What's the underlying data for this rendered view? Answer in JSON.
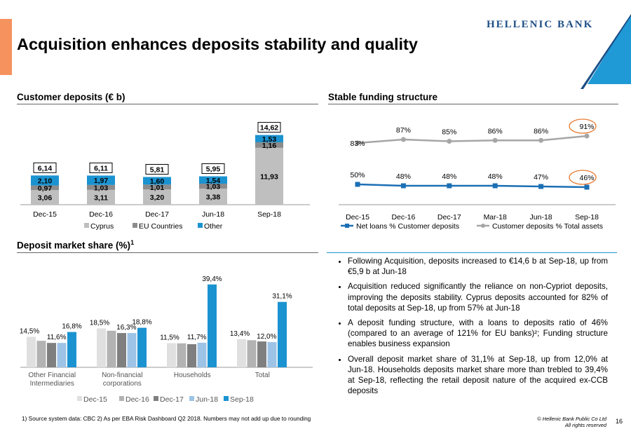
{
  "page": {
    "title": "Acquisition enhances deposits stability and quality",
    "logo": "HELLENIC BANK",
    "footnote": "1) Source system data: CBC 2) As per EBA Risk Dashboard Q2 2018. Numbers may not add up due to rounding",
    "copyright_line1": "© Hellenic Bank Public Co Ltd",
    "copyright_line2": "All rights reserved",
    "page_number": "16",
    "colors": {
      "accent": "#f5925e",
      "brand_blue": "#1c4e86",
      "triangle": "#1f9ad6"
    }
  },
  "sections": {
    "customer_deposits": "Customer deposits (€ b)",
    "stable_funding": "Stable funding structure",
    "market_share": "Deposit market share (%)",
    "market_share_sup": "1"
  },
  "bullets": [
    "Following Acquisition, deposits increased to €14,6 b at Sep-18, up from €5,9 b at Jun-18",
    "Acquisition reduced significantly the reliance on non-Cypriot deposits, improving the deposits stability. Cyprus deposits accounted for 82% of total deposits at Sep-18, up from 57% at Jun-18",
    "A deposit funding structure, with a loans to deposits ratio of 46% (compared to an average of 121% for EU banks)²; Funding structure enables business expansion",
    "Overall deposit market share of 31,1% at Sep-18, up from 12,0% at Jun-18. Households deposits market share more than trebled to 39,4% at Sep-18, reflecting the retail deposit nature of the acquired ex-CCB deposits"
  ],
  "chart_data": [
    {
      "type": "bar",
      "stacked": true,
      "categories": [
        "Dec-15",
        "Dec-16",
        "Dec-17",
        "Jun-18",
        "Sep-18"
      ],
      "series": [
        {
          "name": "Cyprus",
          "values": [
            3.06,
            3.11,
            3.2,
            3.38,
            11.93
          ],
          "labels": [
            "3,06",
            "3,11",
            "3,20",
            "3,38",
            "11,93"
          ],
          "color": "#bfbfbf"
        },
        {
          "name": "EU Countries",
          "values": [
            0.97,
            1.03,
            1.01,
            1.03,
            1.16
          ],
          "labels": [
            "0,97",
            "1,03",
            "1,01",
            "1,03",
            "1,16"
          ],
          "color": "#8c8c8c"
        },
        {
          "name": "Other",
          "values": [
            2.1,
            1.97,
            1.6,
            1.54,
            1.53
          ],
          "labels": [
            "2,10",
            "1,97",
            "1,60",
            "1,54",
            "1,53"
          ],
          "color": "#1b93d1"
        }
      ],
      "totals": [
        "6,14",
        "6,11",
        "5,81",
        "5,95",
        "14,62"
      ],
      "legend": "bottom"
    },
    {
      "type": "line",
      "categories": [
        "Dec-15",
        "Dec-16",
        "Dec-17",
        "Mar-18",
        "Jun-18",
        "Sep-18"
      ],
      "series": [
        {
          "name": "Net loans % Customer deposits",
          "values": [
            50,
            48,
            48,
            48,
            47,
            46
          ],
          "labels": [
            "50%",
            "48%",
            "48%",
            "48%",
            "47%",
            "46%"
          ],
          "color": "#1b6fb5"
        },
        {
          "name": "Customer deposits % Total assets",
          "values": [
            83,
            87,
            85,
            86,
            86,
            91
          ],
          "labels": [
            "83%",
            "87%",
            "85%",
            "86%",
            "86%",
            "91%"
          ],
          "color": "#a6a6a6"
        }
      ],
      "highlighted_labels": [
        "91%",
        "46%"
      ],
      "highlight_color": "#e8772e",
      "legend": "bottom"
    },
    {
      "type": "bar",
      "categories": [
        "Other Financial Intermediaries",
        "Non-financial corporations",
        "Households",
        "Total"
      ],
      "category_lines": [
        [
          "Other Financial",
          "Intermediaries"
        ],
        [
          "Non-financial",
          "corporations"
        ],
        [
          "Households"
        ],
        [
          "Total"
        ]
      ],
      "series": [
        {
          "name": "Dec-15",
          "values": [
            14.5,
            18.5,
            11.5,
            13.4
          ],
          "color": "#e0e0e0"
        },
        {
          "name": "Dec-16",
          "values": [
            12.6,
            17.4,
            11.4,
            12.9
          ],
          "color": "#b3b3b3"
        },
        {
          "name": "Dec-17",
          "values": [
            11.6,
            16.3,
            11.0,
            12.3
          ],
          "color": "#7f7f7f"
        },
        {
          "name": "Jun-18",
          "values": [
            11.6,
            16.3,
            11.7,
            12.0
          ],
          "color": "#9dc3e6"
        },
        {
          "name": "Sep-18",
          "values": [
            16.8,
            18.8,
            39.4,
            31.1
          ],
          "color": "#1b93d1"
        }
      ],
      "data_labels": [
        [
          "14,5%",
          null,
          null,
          "11,6%",
          "16,8%"
        ],
        [
          "18,5%",
          null,
          null,
          "16,3%",
          "18,8%"
        ],
        [
          "11,5%",
          null,
          null,
          "11,7%",
          "39,4%"
        ],
        [
          "13,4%",
          null,
          null,
          "12,0%",
          "31,1%"
        ]
      ],
      "legend": "bottom"
    }
  ]
}
